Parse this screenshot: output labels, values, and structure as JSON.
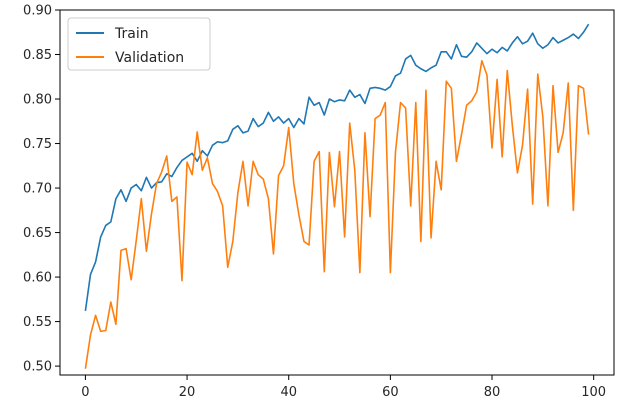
{
  "chart_data": {
    "type": "line",
    "xlim": [
      -5,
      104
    ],
    "ylim": [
      0.49,
      0.9
    ],
    "xticks": [
      0,
      20,
      40,
      60,
      80,
      100
    ],
    "yticks": [
      0.5,
      0.55,
      0.6,
      0.65,
      0.7,
      0.75,
      0.8,
      0.85,
      0.9
    ],
    "legend": "upper-left",
    "grid": false,
    "series": [
      {
        "name": "Train",
        "color": "#1f77b4",
        "values": [
          0.562,
          0.603,
          0.617,
          0.645,
          0.658,
          0.662,
          0.688,
          0.698,
          0.685,
          0.7,
          0.704,
          0.697,
          0.712,
          0.7,
          0.706,
          0.707,
          0.716,
          0.713,
          0.723,
          0.731,
          0.735,
          0.739,
          0.73,
          0.742,
          0.736,
          0.748,
          0.752,
          0.751,
          0.753,
          0.766,
          0.77,
          0.762,
          0.764,
          0.778,
          0.769,
          0.773,
          0.785,
          0.775,
          0.78,
          0.773,
          0.778,
          0.768,
          0.778,
          0.772,
          0.802,
          0.793,
          0.796,
          0.782,
          0.8,
          0.797,
          0.799,
          0.798,
          0.81,
          0.802,
          0.805,
          0.795,
          0.812,
          0.813,
          0.812,
          0.81,
          0.814,
          0.826,
          0.829,
          0.845,
          0.849,
          0.838,
          0.834,
          0.831,
          0.835,
          0.838,
          0.853,
          0.853,
          0.845,
          0.861,
          0.848,
          0.847,
          0.853,
          0.863,
          0.857,
          0.851,
          0.856,
          0.852,
          0.858,
          0.854,
          0.863,
          0.87,
          0.862,
          0.865,
          0.874,
          0.862,
          0.857,
          0.861,
          0.869,
          0.863,
          0.866,
          0.869,
          0.873,
          0.868,
          0.875,
          0.884
        ]
      },
      {
        "name": "Validation",
        "color": "#ff7f0e",
        "values": [
          0.497,
          0.535,
          0.557,
          0.539,
          0.54,
          0.572,
          0.547,
          0.63,
          0.632,
          0.597,
          0.641,
          0.688,
          0.629,
          0.671,
          0.705,
          0.718,
          0.736,
          0.685,
          0.69,
          0.596,
          0.729,
          0.715,
          0.763,
          0.72,
          0.734,
          0.705,
          0.696,
          0.68,
          0.611,
          0.64,
          0.695,
          0.73,
          0.68,
          0.73,
          0.715,
          0.71,
          0.688,
          0.626,
          0.714,
          0.725,
          0.768,
          0.705,
          0.67,
          0.64,
          0.636,
          0.73,
          0.741,
          0.606,
          0.74,
          0.679,
          0.741,
          0.645,
          0.773,
          0.72,
          0.605,
          0.762,
          0.668,
          0.778,
          0.782,
          0.796,
          0.605,
          0.74,
          0.796,
          0.79,
          0.68,
          0.796,
          0.64,
          0.81,
          0.644,
          0.73,
          0.698,
          0.82,
          0.812,
          0.73,
          0.76,
          0.793,
          0.798,
          0.808,
          0.843,
          0.827,
          0.745,
          0.822,
          0.735,
          0.832,
          0.77,
          0.717,
          0.748,
          0.811,
          0.682,
          0.828,
          0.78,
          0.68,
          0.815,
          0.74,
          0.762,
          0.818,
          0.675,
          0.815,
          0.812,
          0.76
        ]
      }
    ]
  }
}
